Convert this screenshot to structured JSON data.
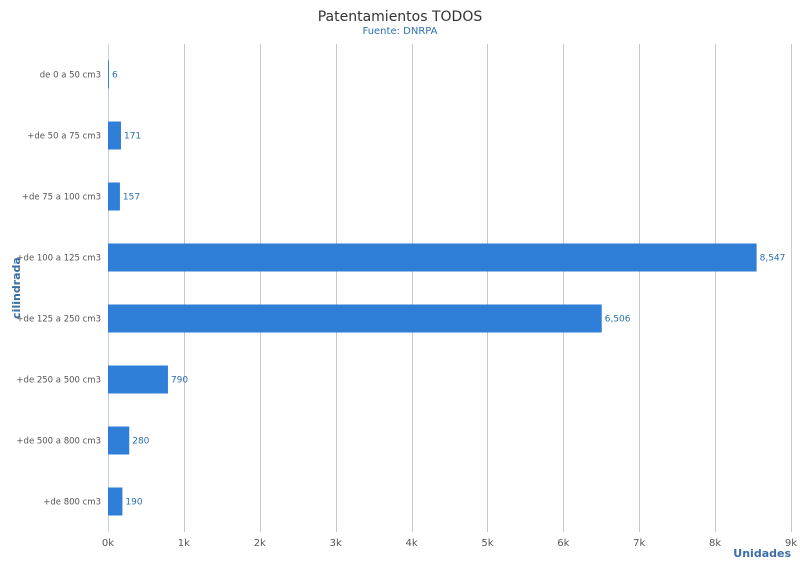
{
  "chart_data": {
    "type": "bar",
    "orientation": "horizontal",
    "title": "Patentamientos TODOS",
    "subtitle": "Fuente: DNRPA",
    "xlabel": "Unidades",
    "ylabel": "cilindrada",
    "categories": [
      "de 0 a 50 cm3",
      "+de 50 a 75 cm3",
      "+de 75 a 100 cm3",
      "+de 100 a 125 cm3",
      "+de 125 a 250 cm3",
      "+de 250 a 500 cm3",
      "+de 500 a 800 cm3",
      "+de 800 cm3"
    ],
    "values": [
      6,
      171,
      157,
      8547,
      6506,
      790,
      280,
      190
    ],
    "data_labels": [
      "6",
      "171",
      "157",
      "8,547",
      "6,506",
      "790",
      "280",
      "190"
    ],
    "xlim": [
      0,
      9000
    ],
    "x_ticks": [
      0,
      1000,
      2000,
      3000,
      4000,
      5000,
      6000,
      7000,
      8000,
      9000
    ],
    "x_tick_labels": [
      "0k",
      "1k",
      "2k",
      "3k",
      "4k",
      "5k",
      "6k",
      "7k",
      "8k",
      "9k"
    ],
    "grid": true,
    "colors": {
      "bar": "#2f7ed8",
      "grid": "#c8c8c8",
      "axis_title": "#3a6ea5",
      "data_label": "#2a6fb0"
    }
  }
}
